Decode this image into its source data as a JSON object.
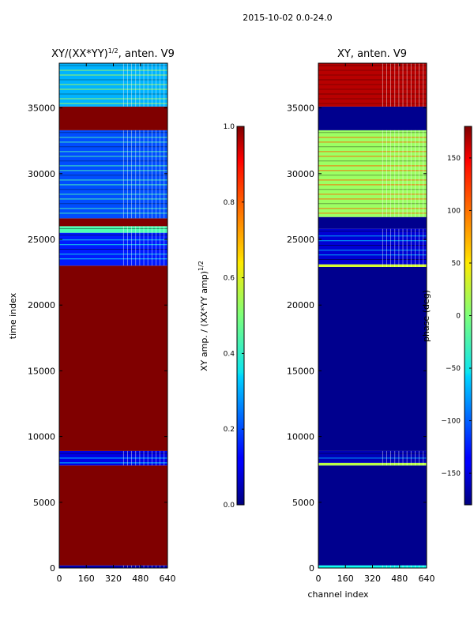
{
  "figure": {
    "suptitle": "2015-10-02 0.0-24.0"
  },
  "chart_data": [
    {
      "type": "heatmap",
      "title_main": "XY/(XX*YY)",
      "title_exp": "1/2",
      "title_rest": ", anten. V9",
      "xlabel": "",
      "ylabel": "time index",
      "xlim": [
        0,
        640
      ],
      "ylim": [
        0,
        38400
      ],
      "x_ticks": [
        0,
        160,
        320,
        480,
        640
      ],
      "y_ticks": [
        0,
        5000,
        10000,
        15000,
        20000,
        25000,
        30000,
        35000
      ],
      "colorbar": {
        "label_main": "XY amp. / (XX*YY amp)",
        "label_exp": "1/2",
        "range": [
          0.0,
          1.0
        ],
        "ticks": [
          "0.0",
          "0.2",
          "0.4",
          "0.6",
          "0.8",
          "1.0"
        ],
        "tick_values": [
          0.0,
          0.2,
          0.4,
          0.6,
          0.8,
          1.0
        ]
      },
      "bands": [
        {
          "from": 0,
          "to": 200,
          "value": 0.05
        },
        {
          "from": 200,
          "to": 7800,
          "value": 1.0
        },
        {
          "from": 7800,
          "to": 8900,
          "value": 0.1
        },
        {
          "from": 8900,
          "to": 23000,
          "value": 1.0
        },
        {
          "from": 23000,
          "to": 25500,
          "value": 0.15
        },
        {
          "from": 25500,
          "to": 26000,
          "value": 0.45
        },
        {
          "from": 26000,
          "to": 26600,
          "value": 1.0
        },
        {
          "from": 26600,
          "to": 33300,
          "value": 0.2
        },
        {
          "from": 33300,
          "to": 35100,
          "value": 1.0
        },
        {
          "from": 35100,
          "to": 38400,
          "value": 0.3
        }
      ]
    },
    {
      "type": "heatmap",
      "title": "XY, anten. V9",
      "xlabel": "channel index",
      "ylabel": "",
      "xlim": [
        0,
        640
      ],
      "ylim": [
        0,
        38400
      ],
      "x_ticks": [
        0,
        160,
        320,
        480,
        640
      ],
      "y_ticks": [
        0,
        5000,
        10000,
        15000,
        20000,
        25000,
        30000,
        35000
      ],
      "colorbar": {
        "label": "phase (deg)",
        "range": [
          -180,
          180
        ],
        "ticks": [
          "−150",
          "−100",
          "−50",
          "0",
          "50",
          "100",
          "150"
        ],
        "tick_values": [
          -150,
          -100,
          -50,
          0,
          50,
          100,
          150
        ]
      },
      "bands": [
        {
          "from": 0,
          "to": 200,
          "value": -40
        },
        {
          "from": 200,
          "to": 7800,
          "value": -175
        },
        {
          "from": 7800,
          "to": 8000,
          "value": 20
        },
        {
          "from": 8000,
          "to": 8900,
          "value": -160
        },
        {
          "from": 8900,
          "to": 22900,
          "value": -175
        },
        {
          "from": 22900,
          "to": 23100,
          "value": 30
        },
        {
          "from": 23100,
          "to": 25800,
          "value": -150
        },
        {
          "from": 25800,
          "to": 26700,
          "value": -175
        },
        {
          "from": 26700,
          "to": 33300,
          "value": 10
        },
        {
          "from": 33300,
          "to": 35100,
          "value": -175
        },
        {
          "from": 35100,
          "to": 38400,
          "value": 160
        }
      ]
    }
  ]
}
